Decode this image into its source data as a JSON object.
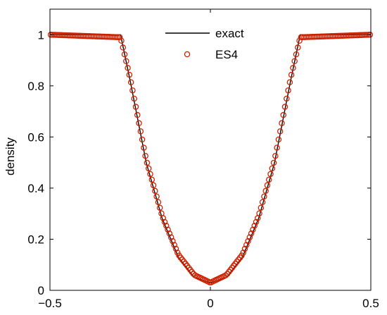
{
  "chart_data": {
    "type": "line",
    "title": "",
    "xlabel": "",
    "ylabel": "density",
    "xlim": [
      -0.5,
      0.5
    ],
    "ylim": [
      0,
      1.1
    ],
    "xticks": [
      -0.5,
      0,
      0.5
    ],
    "xtick_labels": [
      "−0.5",
      "0",
      "0.5"
    ],
    "yticks": [
      0,
      0.2,
      0.4,
      0.6,
      0.8,
      1
    ],
    "ytick_labels": [
      "0",
      "0.2",
      "0.4",
      "0.6",
      "0.8",
      "1"
    ],
    "grid": false,
    "legend_position": "top-center",
    "series": [
      {
        "name": "exact",
        "style": "solid-line",
        "color": "#000000",
        "x": [
          -0.5,
          -0.28,
          -0.25,
          -0.2,
          -0.15,
          -0.1,
          -0.05,
          0,
          0.05,
          0.1,
          0.15,
          0.2,
          0.25,
          0.28,
          0.5
        ],
        "y": [
          1.0,
          1.0,
          0.82,
          0.5,
          0.28,
          0.13,
          0.05,
          0.03,
          0.05,
          0.13,
          0.28,
          0.5,
          0.82,
          1.0,
          1.0
        ]
      },
      {
        "name": "ES4",
        "style": "hollow-circle-markers",
        "color": "#cc2200",
        "x": [
          -0.5,
          -0.28,
          -0.25,
          -0.2,
          -0.15,
          -0.1,
          -0.05,
          0,
          0.05,
          0.1,
          0.15,
          0.2,
          0.25,
          0.28,
          0.5
        ],
        "y": [
          1.0,
          0.99,
          0.83,
          0.51,
          0.29,
          0.14,
          0.06,
          0.03,
          0.06,
          0.14,
          0.29,
          0.51,
          0.83,
          0.99,
          1.0
        ],
        "marker_count": 200
      }
    ]
  }
}
